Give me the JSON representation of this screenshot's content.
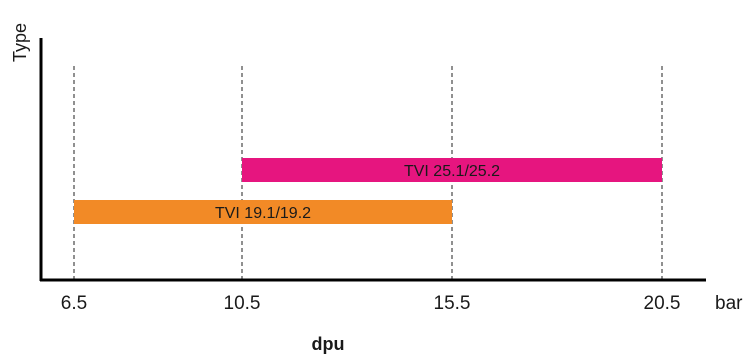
{
  "chart_data": {
    "type": "bar",
    "orientation": "horizontal-range",
    "ylabel": "Type",
    "xlabel": "dpu",
    "x_unit": "bar",
    "xlim": [
      5.5,
      23.0
    ],
    "x_ticks": [
      6.5,
      10.5,
      15.5,
      20.5
    ],
    "x_tick_labels": [
      "6.5",
      "10.5",
      "15.5",
      "20.5"
    ],
    "gridlines": "vertical dashed at ticks",
    "ranges": [
      {
        "label": "TVI 25.1/25.2",
        "start": 10.5,
        "end": 20.5,
        "color": "#e6157f"
      },
      {
        "label": "TVI 19.1/19.2",
        "start": 6.5,
        "end": 15.5,
        "color": "#f28a26"
      }
    ]
  }
}
